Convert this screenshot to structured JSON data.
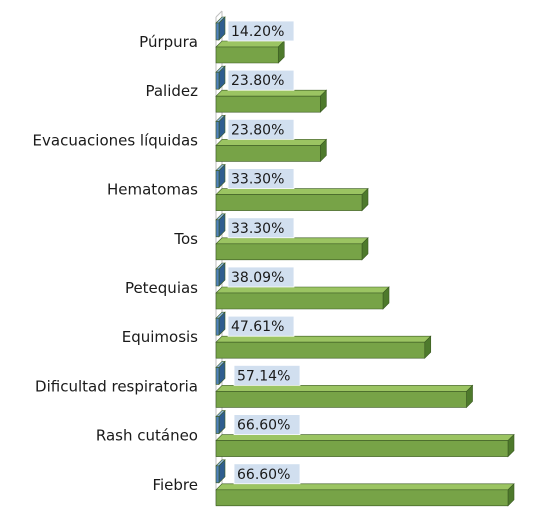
{
  "chart_data": {
    "type": "bar",
    "orientation": "horizontal",
    "three_d": true,
    "categories": [
      "Púrpura",
      "Palidez",
      "Evacuaciones líquidas",
      "Hematomas",
      "Tos",
      "Petequias",
      "Equimosis",
      "Dificultad respiratoria",
      "Rash cutáneo",
      "Fiebre"
    ],
    "series": [
      {
        "values": [
          0.3,
          0.3,
          0.3,
          0.3,
          0.3,
          0.3,
          0.3,
          0.3,
          0.3,
          0.3
        ],
        "color": "#4f81bd"
      },
      {
        "values": [
          14.2,
          23.8,
          23.8,
          33.3,
          33.3,
          38.09,
          47.61,
          57.14,
          66.6,
          66.6
        ],
        "color": "#77a347"
      }
    ],
    "data_labels": [
      "14.20%",
      "23.80%",
      "23.80%",
      "33.30%",
      "33.30%",
      "38.09%",
      "47.61%",
      "57.14%",
      "66.60%",
      "66.60%"
    ],
    "xlim": [
      0,
      66.6
    ],
    "grid": false,
    "legend": "none",
    "colors": {
      "green_front": "#77a347",
      "green_top": "#9bc462",
      "green_side": "#4e7a2c",
      "blue_front": "#4f81bd",
      "blue_top": "#8cb3e0",
      "label_box": "#c9d9ec",
      "axis": "#bfbfbf"
    }
  }
}
